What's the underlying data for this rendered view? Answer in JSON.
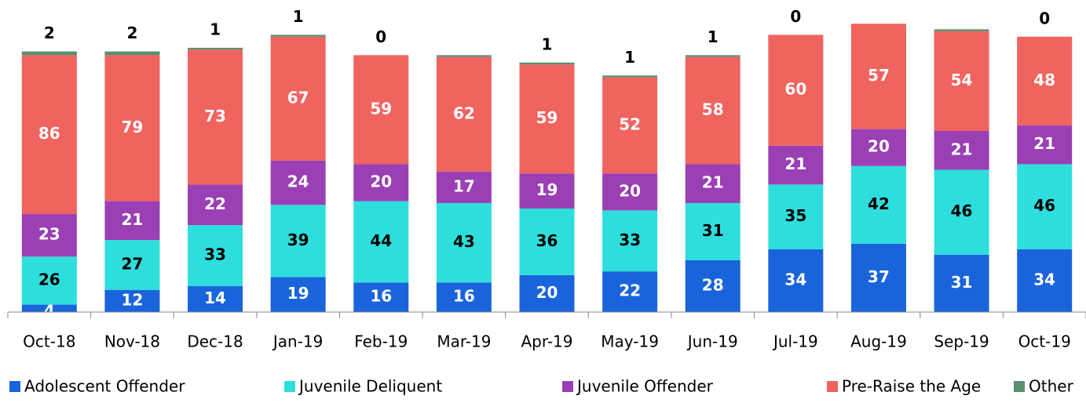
{
  "chart_data": {
    "type": "stacked_bar",
    "categories": [
      "Oct-18",
      "Nov-18",
      "Dec-18",
      "Jan-19",
      "Feb-19",
      "Mar-19",
      "Apr-19",
      "May-19",
      "Jun-19",
      "Jul-19",
      "Aug-19",
      "Sep-19",
      "Oct-19"
    ],
    "series": [
      {
        "name": "Adolescent Offender",
        "color": "#1a64db",
        "label_color": "#ffffff",
        "values": [
          4,
          12,
          14,
          19,
          16,
          16,
          20,
          22,
          28,
          34,
          37,
          31,
          34
        ]
      },
      {
        "name": "Juvenile Deliquent",
        "color": "#2ddedc",
        "label_color": "#000000",
        "values": [
          26,
          27,
          33,
          39,
          44,
          43,
          36,
          33,
          31,
          35,
          42,
          46,
          46
        ]
      },
      {
        "name": "Juvenile Offender",
        "color": "#9b3fb5",
        "label_color": "#ffffff",
        "values": [
          23,
          21,
          22,
          24,
          20,
          17,
          19,
          20,
          21,
          21,
          20,
          21,
          21
        ]
      },
      {
        "name": "Pre-Raise the Age",
        "color": "#f0645f",
        "label_color": "#ffffff",
        "values": [
          86,
          79,
          73,
          67,
          59,
          62,
          59,
          52,
          58,
          60,
          57,
          54,
          48
        ]
      },
      {
        "name": "Other",
        "color": "#5a8f6e",
        "label_color": "#000000",
        "values": [
          2,
          2,
          1,
          1,
          0,
          1,
          1,
          1,
          1,
          0,
          0,
          1,
          0
        ],
        "value_labels": [
          "2",
          "2",
          "1",
          "1",
          "0",
          null,
          "1",
          "1",
          "1",
          "0",
          null,
          null,
          "0"
        ]
      }
    ],
    "ylim": [
      0,
      168
    ]
  }
}
